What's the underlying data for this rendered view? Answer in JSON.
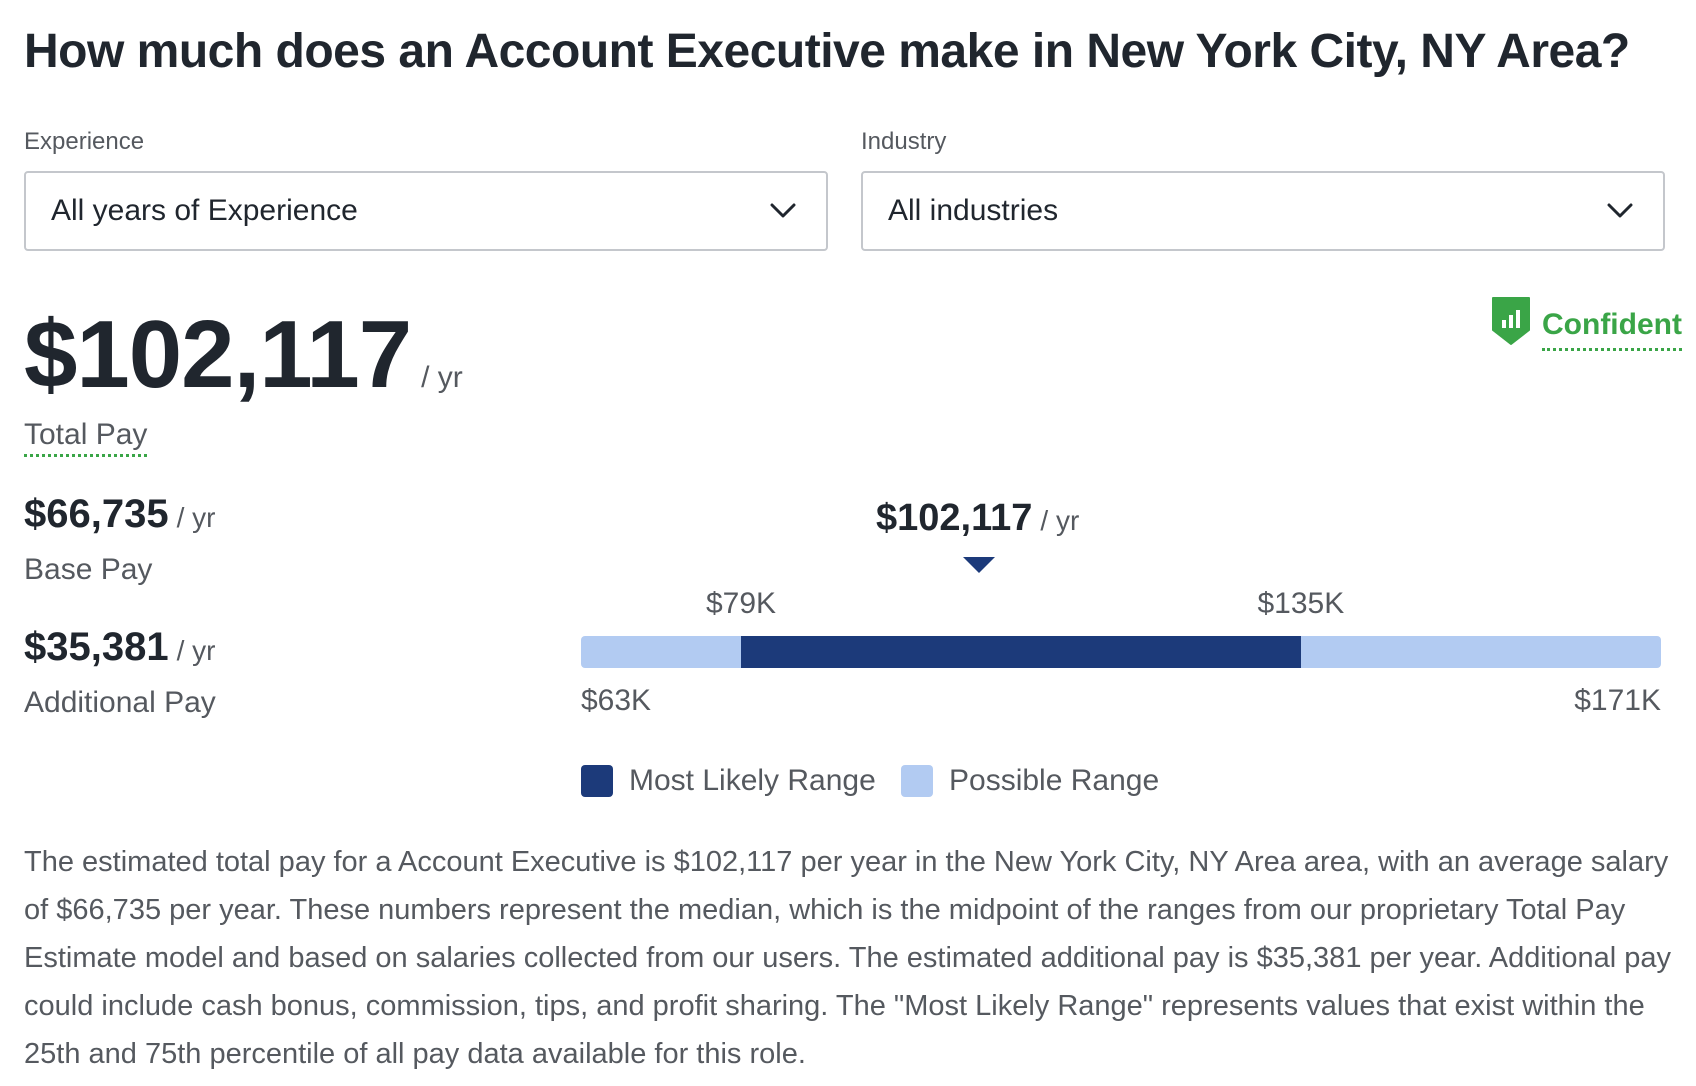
{
  "title": "How much does an Account Executive make in New York City, NY Area?",
  "filters": {
    "experience": {
      "label": "Experience",
      "value": "All years of Experience"
    },
    "industry": {
      "label": "Industry",
      "value": "All industries"
    }
  },
  "total_pay": {
    "amount": "$102,117",
    "unit": "/ yr",
    "label": "Total Pay"
  },
  "confidence": {
    "label": "Confident",
    "icon": "bar-chart-shield-icon",
    "color": "#3aa547"
  },
  "base_pay": {
    "amount": "$66,735",
    "unit": "/ yr",
    "label": "Base Pay"
  },
  "additional_pay": {
    "amount": "$35,381",
    "unit": "/ yr",
    "label": "Additional Pay"
  },
  "range": {
    "median": {
      "amount": "$102,117",
      "unit": "/ yr"
    },
    "likely_low_label": "$79K",
    "likely_high_label": "$135K",
    "min_label": "$63K",
    "max_label": "$171K",
    "min_k": 63,
    "max_k": 171,
    "likely_low_k": 79,
    "likely_high_k": 135,
    "colors": {
      "likely": "#1c3a7a",
      "possible": "#b2cbf2"
    }
  },
  "legend": {
    "likely": "Most Likely Range",
    "possible": "Possible Range"
  },
  "description": "The estimated total pay for a Account Executive is $102,117 per year in the New York City, NY Area area, with an average salary of $66,735 per year. These numbers represent the median, which is the midpoint of the ranges from our proprietary Total Pay Estimate model and based on salaries collected from our users. The estimated additional pay is $35,381 per year. Additional pay could include cash bonus, commission, tips, and profit sharing. The \"Most Likely Range\" represents values that exist within the 25th and 75th percentile of all pay data available for this role."
}
